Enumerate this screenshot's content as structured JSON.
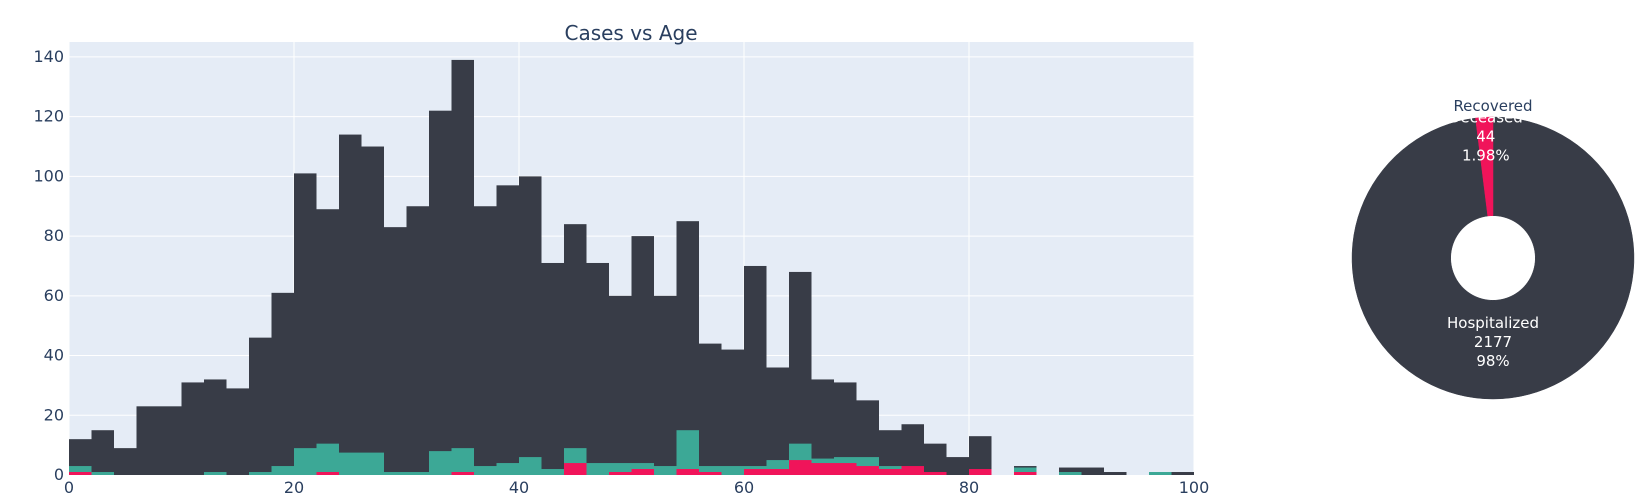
{
  "colors": {
    "plot_bg": "#e5ecf6",
    "grid": "#ffffff",
    "hospitalized": "#383c47",
    "recovered": "#3ca896",
    "deceased": "#f0145a",
    "text": "#2a3f5f"
  },
  "chart_data": [
    {
      "type": "bar",
      "barmode": "overlay",
      "title": "Cases vs Age",
      "xlabel": "",
      "ylabel": "",
      "xlim": [
        0,
        100
      ],
      "ylim": [
        0,
        145
      ],
      "x_ticks": [
        0,
        20,
        40,
        60,
        80,
        100
      ],
      "y_ticks": [
        0,
        20,
        40,
        60,
        80,
        100,
        120,
        140
      ],
      "grid": true,
      "bin_width": 2,
      "series": [
        {
          "color": "#383c47",
          "bins": [
            [
              0,
              12
            ],
            [
              2,
              15
            ],
            [
              4,
              9
            ],
            [
              6,
              23
            ],
            [
              8,
              23
            ],
            [
              10,
              31
            ],
            [
              12,
              32
            ],
            [
              14,
              29
            ],
            [
              16,
              46
            ],
            [
              18,
              61
            ],
            [
              20,
              101
            ],
            [
              22,
              89
            ],
            [
              24,
              114
            ],
            [
              26,
              110
            ],
            [
              28,
              83
            ],
            [
              30,
              90
            ],
            [
              32,
              122
            ],
            [
              34,
              139
            ],
            [
              36,
              90
            ],
            [
              38,
              97
            ],
            [
              40,
              100
            ],
            [
              42,
              71
            ],
            [
              44,
              84
            ],
            [
              46,
              71
            ],
            [
              48,
              60
            ],
            [
              50,
              80
            ],
            [
              52,
              60
            ],
            [
              54,
              85
            ],
            [
              56,
              44
            ],
            [
              58,
              42
            ],
            [
              60,
              70
            ],
            [
              62,
              36
            ],
            [
              64,
              68
            ],
            [
              66,
              32
            ],
            [
              68,
              31
            ],
            [
              70,
              25
            ],
            [
              72,
              15
            ],
            [
              74,
              17
            ],
            [
              76,
              10.5
            ],
            [
              78,
              6
            ],
            [
              80,
              13
            ],
            [
              84,
              3
            ],
            [
              88,
              2.5
            ],
            [
              90,
              2.5
            ],
            [
              92,
              1
            ],
            [
              96,
              0.5
            ],
            [
              98,
              1
            ]
          ]
        },
        {
          "color": "#3ca896",
          "bins": [
            [
              0,
              3
            ],
            [
              2,
              1
            ],
            [
              12,
              1
            ],
            [
              16,
              1
            ],
            [
              18,
              3
            ],
            [
              20,
              9
            ],
            [
              22,
              10.5
            ],
            [
              24,
              7.5
            ],
            [
              26,
              7.5
            ],
            [
              28,
              1
            ],
            [
              30,
              1
            ],
            [
              32,
              8
            ],
            [
              34,
              9
            ],
            [
              36,
              3
            ],
            [
              38,
              4
            ],
            [
              40,
              6
            ],
            [
              42,
              2
            ],
            [
              44,
              9
            ],
            [
              46,
              4
            ],
            [
              48,
              4
            ],
            [
              50,
              4
            ],
            [
              52,
              3
            ],
            [
              54,
              15
            ],
            [
              56,
              3
            ],
            [
              58,
              3
            ],
            [
              60,
              3
            ],
            [
              62,
              5
            ],
            [
              64,
              10.5
            ],
            [
              66,
              5.5
            ],
            [
              68,
              6
            ],
            [
              70,
              6
            ],
            [
              72,
              3
            ],
            [
              74,
              2
            ],
            [
              84,
              2.5
            ],
            [
              88,
              1
            ],
            [
              96,
              1
            ]
          ]
        },
        {
          "color": "#f0145a",
          "bins": [
            [
              0,
              1
            ],
            [
              22,
              1
            ],
            [
              34,
              1
            ],
            [
              44,
              4
            ],
            [
              48,
              1
            ],
            [
              50,
              2
            ],
            [
              54,
              2
            ],
            [
              56,
              1
            ],
            [
              60,
              2
            ],
            [
              62,
              2
            ],
            [
              64,
              5
            ],
            [
              66,
              4
            ],
            [
              68,
              4
            ],
            [
              70,
              3
            ],
            [
              72,
              2
            ],
            [
              74,
              3
            ],
            [
              76,
              1
            ],
            [
              80,
              2
            ],
            [
              84,
              1
            ]
          ]
        }
      ]
    },
    {
      "type": "pie",
      "hole": 0.3,
      "slices": [
        {
          "label": "Hospitalized",
          "value": 2177,
          "percent_text": "98%",
          "color": "#383c47"
        },
        {
          "label": "Deceased",
          "value": 44,
          "percent_text": "1.98%",
          "color": "#f0145a"
        },
        {
          "label": "Recovered",
          "value": 0,
          "percent_text": "",
          "color": "#3ca896"
        }
      ]
    }
  ]
}
